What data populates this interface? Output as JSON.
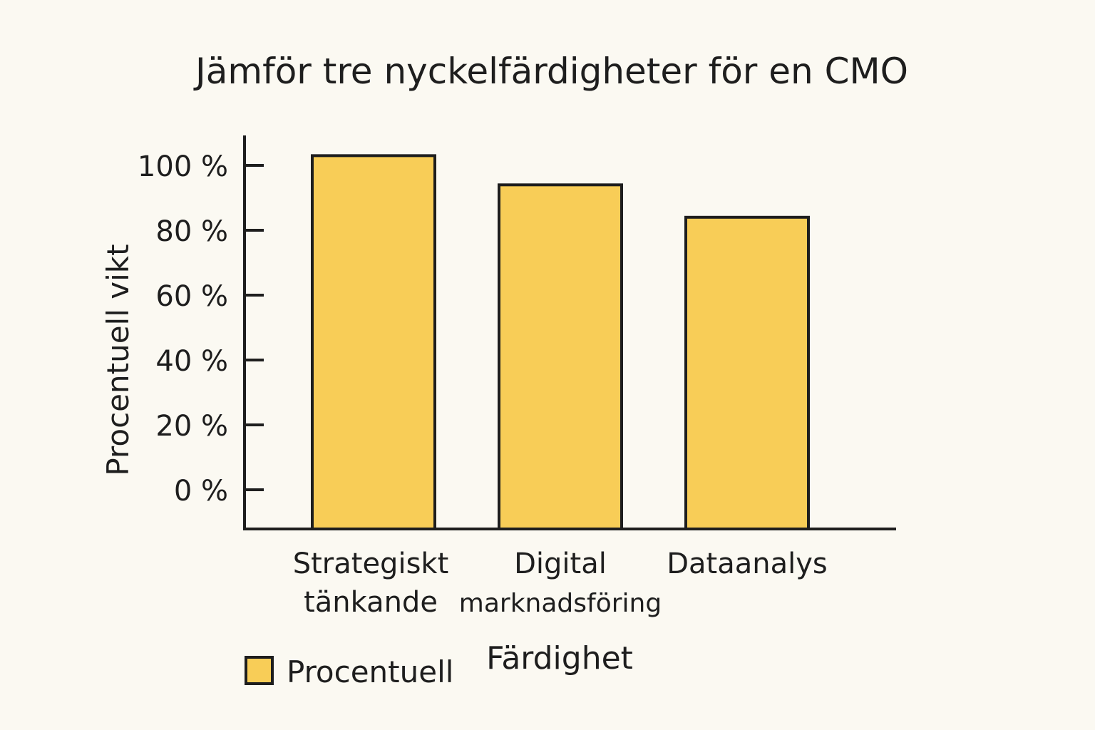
{
  "chart_data": {
    "type": "bar",
    "title": "Jämför tre nyckelfärdigheter för en CMO",
    "xlabel": "Färdighet",
    "ylabel": "Procentuell vikt",
    "categories": [
      [
        "Strategiskt",
        "tänkande"
      ],
      [
        "Digital",
        "marknadsföring"
      ],
      [
        "Dataanalys"
      ]
    ],
    "series": [
      {
        "name": "Procentuell",
        "values": [
          103,
          94,
          84
        ]
      }
    ],
    "yticks": [
      "0 %",
      "20 %",
      "40 %",
      "60 %",
      "80 %",
      "100 %"
    ],
    "ytick_values": [
      0,
      20,
      40,
      60,
      80,
      100
    ],
    "ylim": [
      -12,
      112
    ],
    "grid": false,
    "legend": "bottom-left",
    "colors": {
      "bar": "#f8cd57",
      "stroke": "#1e1e1e",
      "background": "#fbf9f2"
    }
  }
}
